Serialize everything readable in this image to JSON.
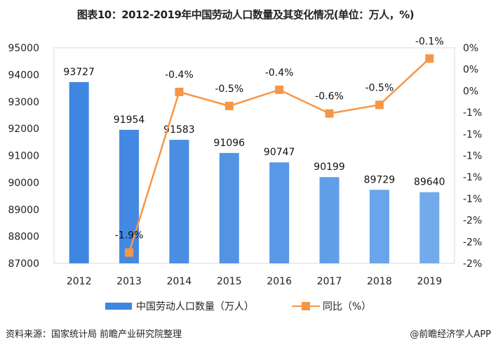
{
  "title": "图表10：2012-2019年中国劳动人口数量及其变化情况(单位：万人，%)",
  "chart_data": {
    "type": "bar+line",
    "categories": [
      "2012",
      "2013",
      "2014",
      "2015",
      "2016",
      "2017",
      "2018",
      "2019"
    ],
    "series": [
      {
        "name": "中国劳动人口数量（万人）",
        "type": "bar",
        "axis": "left",
        "color": "#3f86e0",
        "values": [
          93727,
          91954,
          91583,
          91096,
          90747,
          90199,
          89729,
          89640
        ],
        "labels": [
          "93727",
          "91954",
          "91583",
          "91096",
          "90747",
          "90199",
          "89729",
          "89640"
        ]
      },
      {
        "name": "同比（%）",
        "type": "line",
        "axis": "right",
        "color": "#f79646",
        "values": [
          null,
          -1.9,
          -0.41,
          -0.54,
          -0.39,
          -0.61,
          -0.53,
          -0.1
        ],
        "labels": [
          "",
          "-1.9%",
          "-0.4%",
          "-0.5%",
          "-0.4%",
          "-0.6%",
          "-0.5%",
          "-0.1%"
        ]
      }
    ],
    "left_axis": {
      "ylim": [
        87000,
        95000
      ],
      "ticks": [
        "87000",
        "88000",
        "89000",
        "90000",
        "91000",
        "92000",
        "93000",
        "94000",
        "95000"
      ]
    },
    "right_axis": {
      "ylim": [
        -2.0,
        0
      ],
      "ticks": [
        "-2%",
        "-2%",
        "-2%",
        "-1%",
        "-1%",
        "-1%",
        "-1%",
        "-1%",
        "0%",
        "0%",
        "0%"
      ]
    },
    "grid": false,
    "legend": "bottom"
  },
  "legend": {
    "bar_label": "中国劳动人口数量（万人）",
    "line_label": "同比（%）"
  },
  "source": "资料来源：国家统计局 前瞻产业研究院整理",
  "credit": "@前瞻经济学人APP"
}
